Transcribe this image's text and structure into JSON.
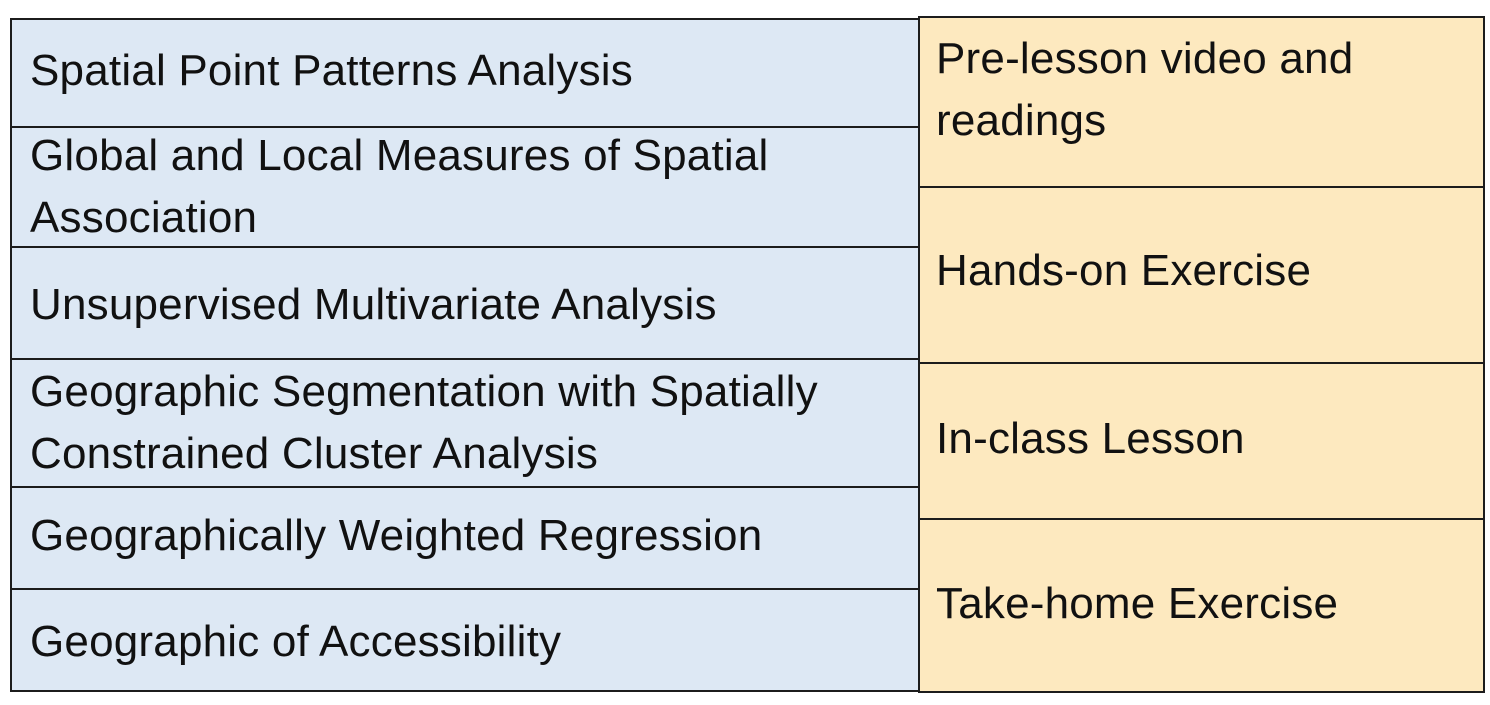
{
  "colors": {
    "topic_fill": "#dde8f4",
    "activity_fill": "#fde9bf",
    "border": "#1c1c1c"
  },
  "topics": [
    {
      "label": "Spatial Point Patterns Analysis"
    },
    {
      "label": "Global and Local Measures of Spatial Association"
    },
    {
      "label": "Unsupervised Multivariate Analysis"
    },
    {
      "label": "Geographic Segmentation with Spatially Constrained Cluster Analysis"
    },
    {
      "label": "Geographically Weighted Regression"
    },
    {
      "label": "Geographic of Accessibility"
    }
  ],
  "activities": [
    {
      "label": "Pre-lesson video and readings"
    },
    {
      "label": "Hands-on Exercise"
    },
    {
      "label": "In-class Lesson"
    },
    {
      "label": "Take-home Exercise"
    }
  ]
}
